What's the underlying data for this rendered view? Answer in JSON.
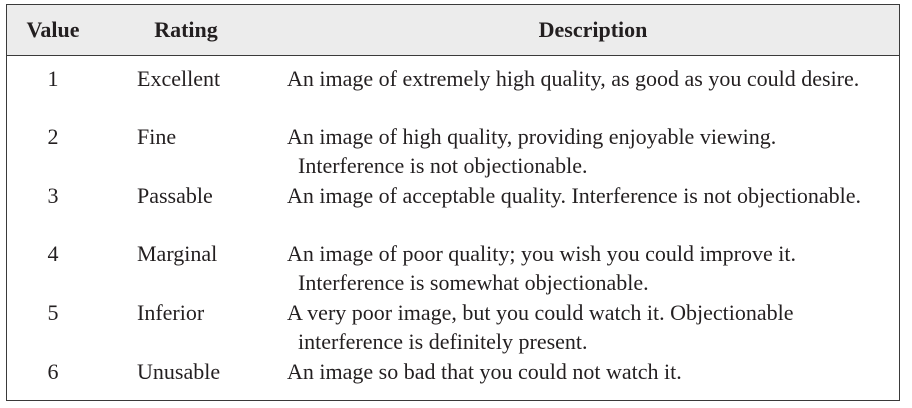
{
  "table": {
    "headers": {
      "value": "Value",
      "rating": "Rating",
      "description": "Description"
    },
    "rows": [
      {
        "value": "1",
        "rating": "Excellent",
        "description": "An image of extremely high quality, as good as you could desire."
      },
      {
        "value": "2",
        "rating": "Fine",
        "description": "An image of high quality, providing enjoyable viewing. Interference is not objectionable."
      },
      {
        "value": "3",
        "rating": "Passable",
        "description": "An image of acceptable quality. Interference is not objectionable."
      },
      {
        "value": "4",
        "rating": "Marginal",
        "description": "An image of poor quality; you wish you could improve it. Interference is somewhat objectionable."
      },
      {
        "value": "5",
        "rating": "Inferior",
        "description": "A very poor image, but you could watch it. Objectionable interference is definitely present."
      },
      {
        "value": "6",
        "rating": "Unusable",
        "description": "An image so bad that you could not watch it."
      }
    ]
  }
}
